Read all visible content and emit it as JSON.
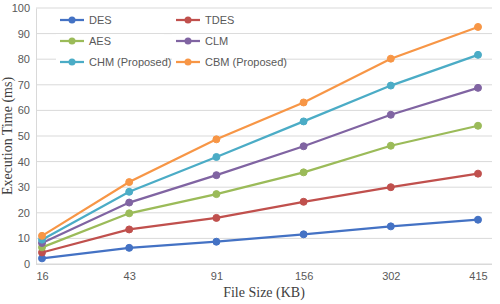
{
  "chart_data": {
    "type": "line",
    "x_label": "File Size (KB)",
    "y_label": "Execution Time (ms)",
    "categories": [
      "16",
      "43",
      "91",
      "156",
      "302",
      "415"
    ],
    "series": [
      {
        "name": "DES",
        "color": "#4472c4",
        "values": [
          2.2,
          6.3,
          8.7,
          11.6,
          14.7,
          17.3
        ]
      },
      {
        "name": "TDES",
        "color": "#c0504d",
        "values": [
          4.5,
          13.5,
          18.0,
          24.3,
          30.0,
          35.3
        ]
      },
      {
        "name": "AES",
        "color": "#9bbb59",
        "values": [
          6.5,
          19.8,
          27.3,
          35.8,
          46.2,
          54.0
        ]
      },
      {
        "name": "CLM",
        "color": "#8064a2",
        "values": [
          8.2,
          24.0,
          34.7,
          46.0,
          58.3,
          68.8
        ]
      },
      {
        "name": "CHM (Proposed)",
        "color": "#4bacc6",
        "values": [
          9.5,
          28.2,
          41.8,
          55.7,
          69.7,
          81.7
        ]
      },
      {
        "name": "CBM (Proposed)",
        "color": "#f79646",
        "values": [
          11.0,
          32.0,
          48.7,
          63.1,
          80.2,
          92.6
        ]
      }
    ],
    "ylim": [
      0,
      100
    ],
    "yticks": [
      0,
      10,
      20,
      30,
      40,
      50,
      60,
      70,
      80,
      90,
      100
    ],
    "grid": true,
    "legend": "upper-left",
    "marker": "circle"
  }
}
